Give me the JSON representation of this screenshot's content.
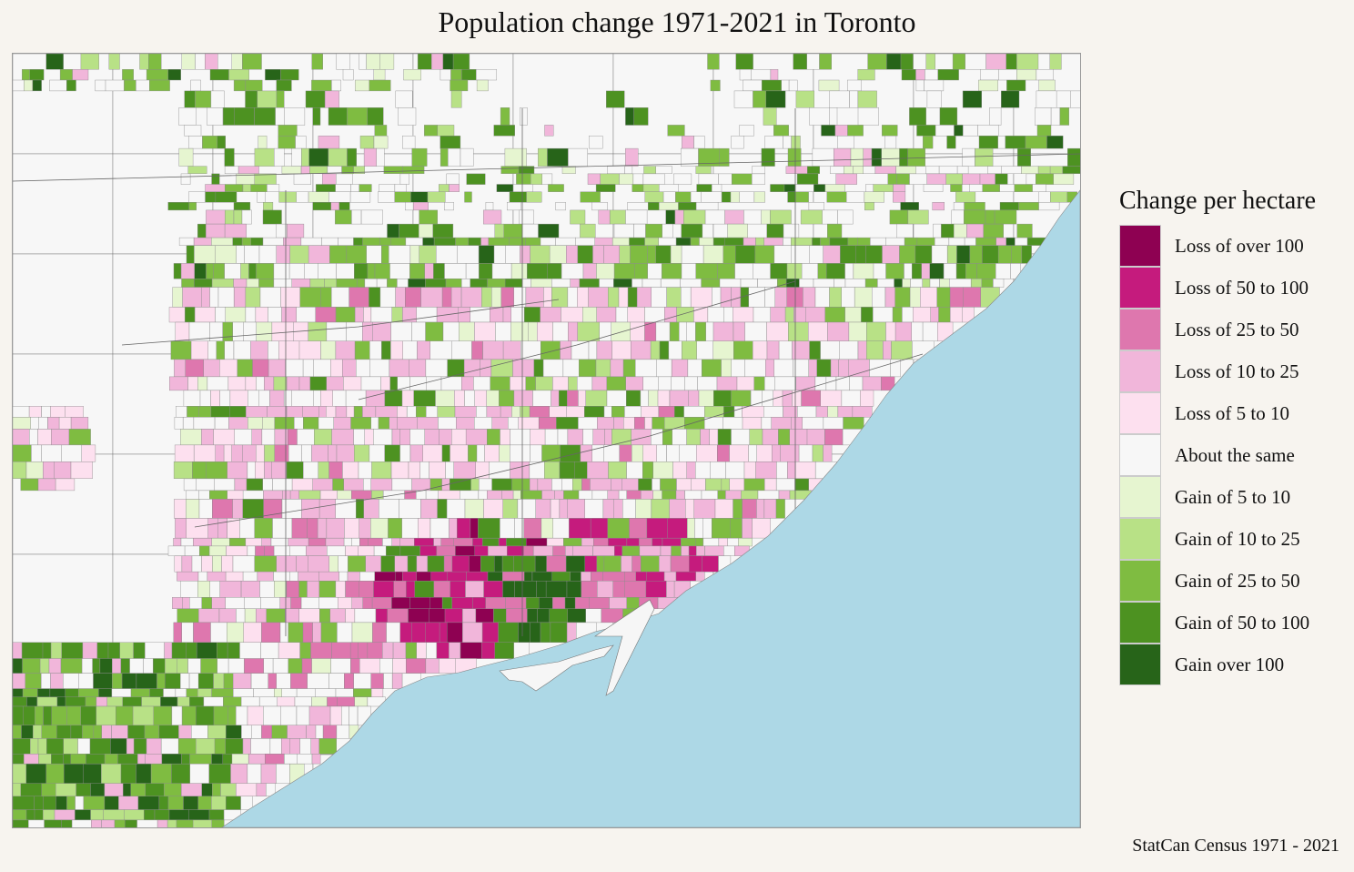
{
  "title": "Population change 1971-2021 in Toronto",
  "legend": {
    "title": "Change per hectare",
    "items": [
      {
        "label": "Loss of over 100",
        "color": "#8e0152"
      },
      {
        "label": "Loss of 50 to 100",
        "color": "#c51b7d"
      },
      {
        "label": "Loss of 25 to 50",
        "color": "#de77ae"
      },
      {
        "label": "Loss of 10 to 25",
        "color": "#f1b6da"
      },
      {
        "label": "Loss of 5 to 10",
        "color": "#fde0ef"
      },
      {
        "label": "About the same",
        "color": "#f7f7f7"
      },
      {
        "label": "Gain of 5  to 10",
        "color": "#e6f5d0"
      },
      {
        "label": "Gain of 10 to 25",
        "color": "#b8e186"
      },
      {
        "label": "Gain of 25 to 50",
        "color": "#7fbc41"
      },
      {
        "label": "Gain of 50 to 100",
        "color": "#4d9221"
      },
      {
        "label": "Gain over 100",
        "color": "#276419"
      }
    ]
  },
  "map": {
    "water_color": "#add8e6",
    "land_color": "#f6f6f6",
    "boundary_color": "#555555"
  },
  "source": "StatCan Census 1971 - 2021"
}
